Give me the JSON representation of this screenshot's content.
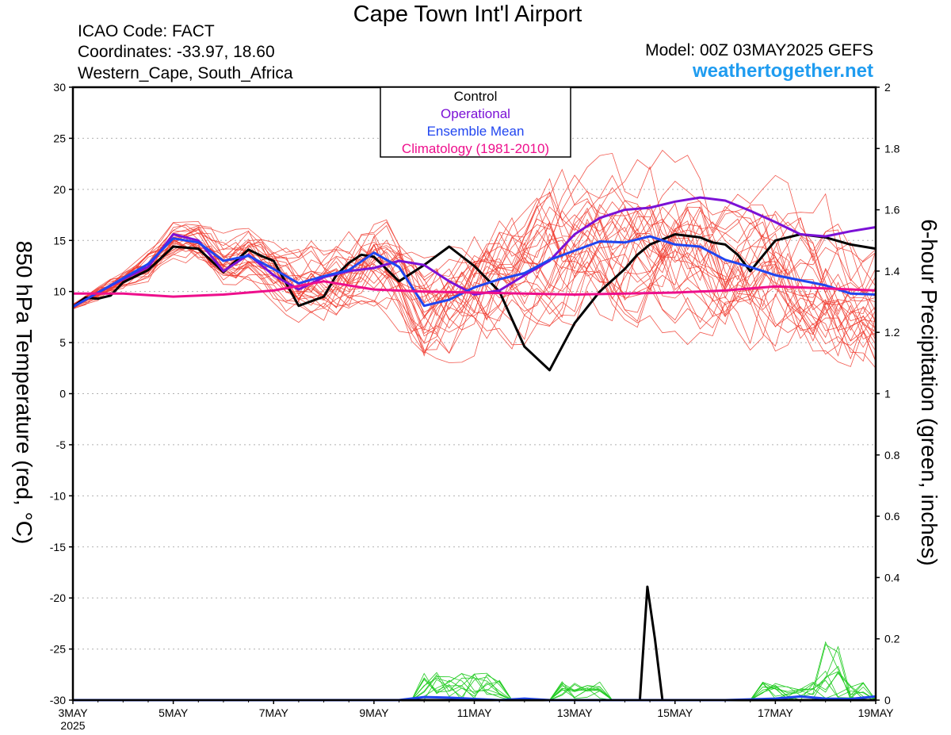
{
  "header": {
    "title": "Cape Town Int'l Airport",
    "icao": "ICAO Code: FACT",
    "coordinates": "Coordinates: -33.97, 18.60",
    "region": "Western_Cape, South_Africa",
    "model": "Model: 00Z 03MAY2025 GEFS",
    "website": "weathertogether.net"
  },
  "colors": {
    "control": "#000000",
    "operational": "#7b11d6",
    "ensemble_mean": "#2045f0",
    "climatology": "#ee0f8c",
    "members_temp": "#f03a2e",
    "members_precip": "#22cc22",
    "website": "#1f9cf0"
  },
  "chart_data": {
    "type": "line",
    "xlabel_ticks": [
      "3MAY",
      "5MAY",
      "7MAY",
      "9MAY",
      "11MAY",
      "13MAY",
      "15MAY",
      "17MAY",
      "19MAY"
    ],
    "x_year_label": "2025",
    "x_range_days": [
      0,
      16
    ],
    "ylabel_left": "850 hPa Temperature (red, °C)",
    "ylabel_right": "6-hour Precipitation (green, inches)",
    "ylim_left": [
      -30,
      30
    ],
    "yticks_left": [
      30,
      25,
      20,
      15,
      10,
      5,
      0,
      -5,
      -10,
      -15,
      -20,
      -25,
      -30
    ],
    "ylim_right": [
      0,
      2
    ],
    "yticks_right": [
      "2",
      "1.8",
      "1.6",
      "1.4",
      "1.2",
      "1",
      "0.8",
      "0.6",
      "0.4",
      "0.2",
      "0"
    ],
    "grid": true,
    "legend": {
      "position": "top-center",
      "entries": [
        {
          "label": "Control",
          "color": "#000000"
        },
        {
          "label": "Operational",
          "color": "#7b11d6"
        },
        {
          "label": "Ensemble Mean",
          "color": "#2045f0"
        },
        {
          "label": "Climatology (1981-2010)",
          "color": "#ee0f8c"
        }
      ]
    },
    "temperature_series": [
      {
        "name": "Control",
        "color": "#000000",
        "x": [
          0,
          0.25,
          0.5,
          0.75,
          1,
          1.5,
          2,
          2.5,
          3,
          3.25,
          3.5,
          3.75,
          4,
          4.5,
          5,
          5.25,
          5.5,
          5.75,
          6,
          6.5,
          7,
          7.5,
          8,
          8.5,
          9,
          9.5,
          9.75,
          10,
          10.5,
          11,
          11.25,
          11.5,
          11.75,
          12,
          12.5,
          12.75,
          13,
          13.25,
          13.5,
          14,
          14.5,
          15,
          15.5,
          16
        ],
        "y": [
          8.5,
          9.4,
          9.3,
          9.6,
          10.9,
          12.1,
          14.4,
          14.2,
          11.9,
          13.0,
          14.1,
          13.5,
          13.0,
          8.6,
          9.5,
          11.6,
          12.8,
          13.6,
          13.4,
          11.0,
          12.6,
          14.4,
          12.5,
          10.0,
          4.6,
          2.3,
          4.6,
          6.9,
          10.0,
          12.2,
          13.6,
          14.6,
          15.1,
          15.6,
          15.3,
          14.8,
          14.6,
          13.6,
          12.0,
          15.0,
          15.6,
          15.3,
          14.6,
          14.2
        ]
      },
      {
        "name": "Operational",
        "color": "#7b11d6",
        "x": [
          0,
          0.5,
          1,
          1.5,
          2,
          2.5,
          3,
          3.5,
          4,
          4.5,
          5,
          5.5,
          6,
          6.5,
          7,
          7.5,
          8,
          8.5,
          9,
          9.5,
          10,
          10.5,
          11,
          11.5,
          12,
          12.5,
          13,
          13.5,
          14,
          14.5,
          15,
          15.5,
          16
        ],
        "y": [
          8.5,
          9.9,
          11.2,
          12.4,
          15.6,
          15.0,
          12.0,
          13.6,
          11.6,
          10.2,
          11.4,
          12.0,
          12.3,
          13.0,
          12.6,
          11.0,
          9.7,
          10.1,
          11.6,
          13.0,
          15.6,
          17.2,
          18.0,
          18.2,
          18.8,
          19.2,
          18.9,
          17.9,
          16.8,
          15.6,
          15.4,
          15.9,
          16.3
        ]
      },
      {
        "name": "Ensemble Mean",
        "color": "#2045f0",
        "x": [
          0,
          0.5,
          1,
          1.5,
          2,
          2.5,
          3,
          3.5,
          4,
          4.5,
          5,
          5.5,
          6,
          6.5,
          7,
          7.5,
          8,
          8.5,
          9,
          9.5,
          10,
          10.5,
          11,
          11.5,
          12,
          12.5,
          13,
          13.5,
          14,
          14.5,
          15,
          15.5,
          16
        ],
        "y": [
          8.5,
          9.9,
          11.3,
          12.7,
          15.2,
          14.8,
          13.0,
          13.5,
          12.2,
          10.8,
          11.5,
          12.1,
          13.8,
          12.4,
          8.6,
          9.2,
          10.4,
          11.2,
          11.8,
          13.1,
          14.0,
          14.9,
          14.8,
          15.4,
          14.6,
          14.4,
          13.1,
          12.4,
          11.6,
          11.1,
          10.6,
          9.8,
          9.7
        ]
      },
      {
        "name": "Climatology (1981-2010)",
        "color": "#ee0f8c",
        "x": [
          0,
          1,
          2,
          3,
          4,
          5,
          6,
          7,
          8,
          9,
          10,
          11,
          12,
          13,
          14,
          15,
          16
        ],
        "y": [
          9.8,
          9.8,
          9.5,
          9.7,
          10.1,
          11.0,
          10.2,
          10.0,
          9.9,
          9.8,
          9.7,
          9.8,
          9.9,
          10.1,
          10.5,
          10.3,
          10.1
        ]
      }
    ],
    "precipitation_series": [
      {
        "name": "Control",
        "color": "#000000",
        "x": [
          0,
          11,
          11.3,
          11.45,
          11.6,
          11.75,
          16
        ],
        "y": [
          0,
          0,
          0,
          0.37,
          0.2,
          0,
          0
        ]
      },
      {
        "name": "Ensemble Mean",
        "color": "#2045f0",
        "x": [
          0,
          6.5,
          7,
          7.5,
          8,
          8.5,
          9,
          9.5,
          10,
          11,
          12,
          13,
          14,
          14.5,
          15,
          15.5,
          16
        ],
        "y": [
          0,
          0,
          0.01,
          0.008,
          0.004,
          0,
          0.005,
          0,
          0,
          0,
          0,
          0,
          0.005,
          0.012,
          0.005,
          0.004,
          0.012
        ]
      }
    ]
  }
}
